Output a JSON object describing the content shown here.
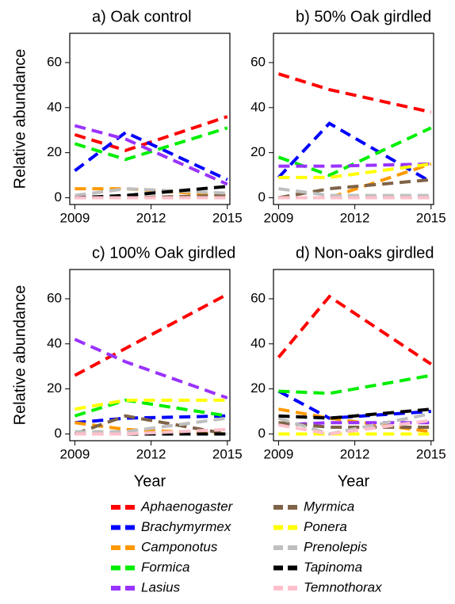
{
  "chart_data": [
    {
      "type": "line",
      "title": "a) Oak control",
      "y_label": "Relative abundance",
      "x": [
        2009,
        2011,
        2015
      ],
      "xlim": [
        2008.8,
        2015.1
      ],
      "xticks": [
        2009,
        2012,
        2015
      ],
      "ylim": [
        -3,
        73
      ],
      "yticks": [
        0,
        20,
        40,
        60
      ],
      "series": [
        {
          "name": "Aphaenogaster",
          "color": "#ff0000",
          "values": [
            28,
            21,
            36
          ]
        },
        {
          "name": "Brachymyrmex",
          "color": "#0000ff",
          "values": [
            12,
            29,
            8
          ]
        },
        {
          "name": "Camponotus",
          "color": "#ff9900",
          "values": [
            4,
            4,
            1
          ]
        },
        {
          "name": "Formica",
          "color": "#00ee00",
          "values": [
            24,
            17,
            31
          ]
        },
        {
          "name": "Lasius",
          "color": "#9933ff",
          "values": [
            32,
            26,
            6
          ]
        },
        {
          "name": "Myrmica",
          "color": "#7f6347",
          "values": [
            0,
            0,
            1
          ]
        },
        {
          "name": "Ponera",
          "color": "#ffff00",
          "values": [
            0,
            0,
            0
          ]
        },
        {
          "name": "Prenolepis",
          "color": "#bfbfbf",
          "values": [
            1,
            4,
            2
          ]
        },
        {
          "name": "Tapinoma",
          "color": "#000000",
          "values": [
            0,
            1,
            5
          ]
        },
        {
          "name": "Temnothorax",
          "color": "#ffc0cb",
          "values": [
            0,
            0,
            0
          ]
        }
      ]
    },
    {
      "type": "line",
      "title": "b) 50% Oak girdled",
      "x": [
        2009,
        2011,
        2015
      ],
      "xlim": [
        2008.8,
        2015.1
      ],
      "xticks": [
        2009,
        2012,
        2015
      ],
      "ylim": [
        -3,
        73
      ],
      "yticks": [
        0,
        20,
        40,
        60
      ],
      "series": [
        {
          "name": "Aphaenogaster",
          "color": "#ff0000",
          "values": [
            55,
            48,
            38
          ]
        },
        {
          "name": "Brachymyrmex",
          "color": "#0000ff",
          "values": [
            9,
            33,
            7
          ]
        },
        {
          "name": "Camponotus",
          "color": "#ff9900",
          "values": [
            0,
            0,
            15
          ]
        },
        {
          "name": "Formica",
          "color": "#00ee00",
          "values": [
            18,
            10,
            31
          ]
        },
        {
          "name": "Lasius",
          "color": "#9933ff",
          "values": [
            14,
            14,
            15
          ]
        },
        {
          "name": "Myrmica",
          "color": "#7f6347",
          "values": [
            0,
            4,
            8
          ]
        },
        {
          "name": "Ponera",
          "color": "#ffff00",
          "values": [
            9,
            9,
            15
          ]
        },
        {
          "name": "Prenolepis",
          "color": "#bfbfbf",
          "values": [
            4,
            1,
            1
          ]
        },
        {
          "name": "Tapinoma",
          "color": "#000000",
          "values": [
            0,
            0,
            0
          ]
        },
        {
          "name": "Temnothorax",
          "color": "#ffc0cb",
          "values": [
            0,
            0,
            0
          ]
        }
      ]
    },
    {
      "type": "line",
      "title": "c) 100% Oak girdled",
      "y_label": "Relative abundance",
      "x_label": "Year",
      "x": [
        2009,
        2011,
        2015
      ],
      "xlim": [
        2008.8,
        2015.1
      ],
      "xticks": [
        2009,
        2012,
        2015
      ],
      "ylim": [
        -3,
        73
      ],
      "yticks": [
        0,
        20,
        40,
        60
      ],
      "series": [
        {
          "name": "Aphaenogaster",
          "color": "#ff0000",
          "values": [
            26,
            38,
            62
          ]
        },
        {
          "name": "Brachymyrmex",
          "color": "#0000ff",
          "values": [
            5,
            7,
            8
          ]
        },
        {
          "name": "Camponotus",
          "color": "#ff9900",
          "values": [
            5,
            2,
            0
          ]
        },
        {
          "name": "Formica",
          "color": "#00ee00",
          "values": [
            8,
            15,
            8
          ]
        },
        {
          "name": "Lasius",
          "color": "#9933ff",
          "values": [
            42,
            32,
            16
          ]
        },
        {
          "name": "Myrmica",
          "color": "#7f6347",
          "values": [
            0,
            8,
            0
          ]
        },
        {
          "name": "Ponera",
          "color": "#ffff00",
          "values": [
            11,
            15,
            15
          ]
        },
        {
          "name": "Prenolepis",
          "color": "#bfbfbf",
          "values": [
            1,
            1,
            7
          ]
        },
        {
          "name": "Tapinoma",
          "color": "#000000",
          "values": [
            0,
            0,
            0
          ]
        },
        {
          "name": "Temnothorax",
          "color": "#ffc0cb",
          "values": [
            0,
            0,
            2
          ]
        }
      ]
    },
    {
      "type": "line",
      "title": "d) Non-oaks girdled",
      "x_label": "Year",
      "x": [
        2009,
        2011,
        2015
      ],
      "xlim": [
        2008.8,
        2015.1
      ],
      "xticks": [
        2009,
        2012,
        2015
      ],
      "ylim": [
        -3,
        73
      ],
      "yticks": [
        0,
        20,
        40,
        60
      ],
      "series": [
        {
          "name": "Aphaenogaster",
          "color": "#ff0000",
          "values": [
            34,
            61,
            31
          ]
        },
        {
          "name": "Brachymyrmex",
          "color": "#0000ff",
          "values": [
            19,
            7,
            10
          ]
        },
        {
          "name": "Camponotus",
          "color": "#ff9900",
          "values": [
            11,
            7,
            1
          ]
        },
        {
          "name": "Formica",
          "color": "#00ee00",
          "values": [
            19,
            18,
            26
          ]
        },
        {
          "name": "Lasius",
          "color": "#9933ff",
          "values": [
            4,
            5,
            5
          ]
        },
        {
          "name": "Myrmica",
          "color": "#7f6347",
          "values": [
            5,
            3,
            3
          ]
        },
        {
          "name": "Ponera",
          "color": "#ffff00",
          "values": [
            0,
            0,
            0
          ]
        },
        {
          "name": "Prenolepis",
          "color": "#bfbfbf",
          "values": [
            7,
            0,
            9
          ]
        },
        {
          "name": "Tapinoma",
          "color": "#000000",
          "values": [
            8,
            7,
            11
          ]
        },
        {
          "name": "Temnothorax",
          "color": "#ffc0cb",
          "values": [
            4,
            0,
            6
          ]
        }
      ]
    }
  ]
}
